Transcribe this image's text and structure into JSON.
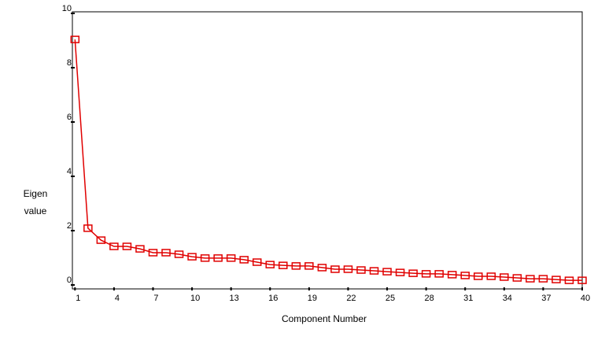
{
  "chart_data": {
    "type": "line",
    "x_label": "Component Number",
    "y_label_lines": [
      "Eigen",
      "value"
    ],
    "x": [
      1,
      2,
      3,
      4,
      5,
      6,
      7,
      8,
      9,
      10,
      11,
      12,
      13,
      14,
      15,
      16,
      17,
      18,
      19,
      20,
      21,
      22,
      23,
      24,
      25,
      26,
      27,
      28,
      29,
      30,
      31,
      32,
      33,
      34,
      35,
      36,
      37,
      38,
      39,
      40
    ],
    "series": [
      {
        "name": "Eigenvalue",
        "color": "#e00000",
        "values": [
          9.04,
          2.09,
          1.65,
          1.42,
          1.42,
          1.33,
          1.19,
          1.19,
          1.13,
          1.04,
          0.99,
          0.99,
          0.99,
          0.93,
          0.84,
          0.75,
          0.72,
          0.7,
          0.7,
          0.64,
          0.58,
          0.58,
          0.55,
          0.52,
          0.49,
          0.46,
          0.43,
          0.41,
          0.41,
          0.38,
          0.35,
          0.32,
          0.32,
          0.29,
          0.26,
          0.23,
          0.23,
          0.2,
          0.17,
          0.17
        ]
      }
    ],
    "xlim": [
      0.8,
      40
    ],
    "xticks": [
      1,
      4,
      7,
      10,
      13,
      16,
      19,
      22,
      25,
      28,
      31,
      34,
      37,
      40
    ],
    "ylim": [
      0,
      10
    ],
    "yticks": [
      0,
      2,
      4,
      6,
      8,
      10
    ]
  }
}
